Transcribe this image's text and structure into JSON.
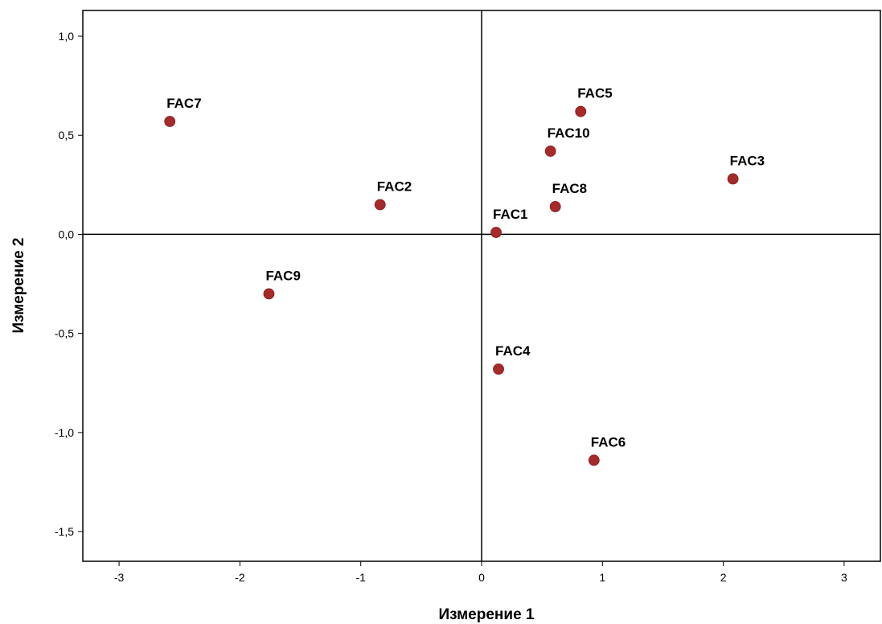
{
  "chart_data": {
    "type": "scatter",
    "title": "",
    "xlabel": "Измерение 1",
    "ylabel": "Измерение 2",
    "xlim": [
      -3.3,
      3.3
    ],
    "ylim": [
      -1.65,
      1.13
    ],
    "xticks": [
      -3,
      -2,
      -1,
      0,
      1,
      2,
      3
    ],
    "xtick_labels": [
      "-3",
      "-2",
      "-1",
      "0",
      "1",
      "2",
      "3"
    ],
    "yticks": [
      1.0,
      0.5,
      0.0,
      -0.5,
      -1.0,
      -1.5
    ],
    "ytick_labels": [
      "1,0",
      "0,5",
      "0,0",
      "-0,5",
      "-1,0",
      "-1,5"
    ],
    "reference_lines": {
      "x": 0,
      "y": 0
    },
    "grid": false,
    "legend": "none",
    "marker_color": "#A52A2A",
    "points": [
      {
        "label": "FAC1",
        "x": 0.12,
        "y": 0.01
      },
      {
        "label": "FAC2",
        "x": -0.84,
        "y": 0.15
      },
      {
        "label": "FAC3",
        "x": 2.08,
        "y": 0.28
      },
      {
        "label": "FAC4",
        "x": 0.14,
        "y": -0.68
      },
      {
        "label": "FAC5",
        "x": 0.82,
        "y": 0.62
      },
      {
        "label": "FAC6",
        "x": 0.93,
        "y": -1.14
      },
      {
        "label": "FAC7",
        "x": -2.58,
        "y": 0.57
      },
      {
        "label": "FAC8",
        "x": 0.61,
        "y": 0.14
      },
      {
        "label": "FAC9",
        "x": -1.76,
        "y": -0.3
      },
      {
        "label": "FAC10",
        "x": 0.57,
        "y": 0.42
      }
    ]
  }
}
